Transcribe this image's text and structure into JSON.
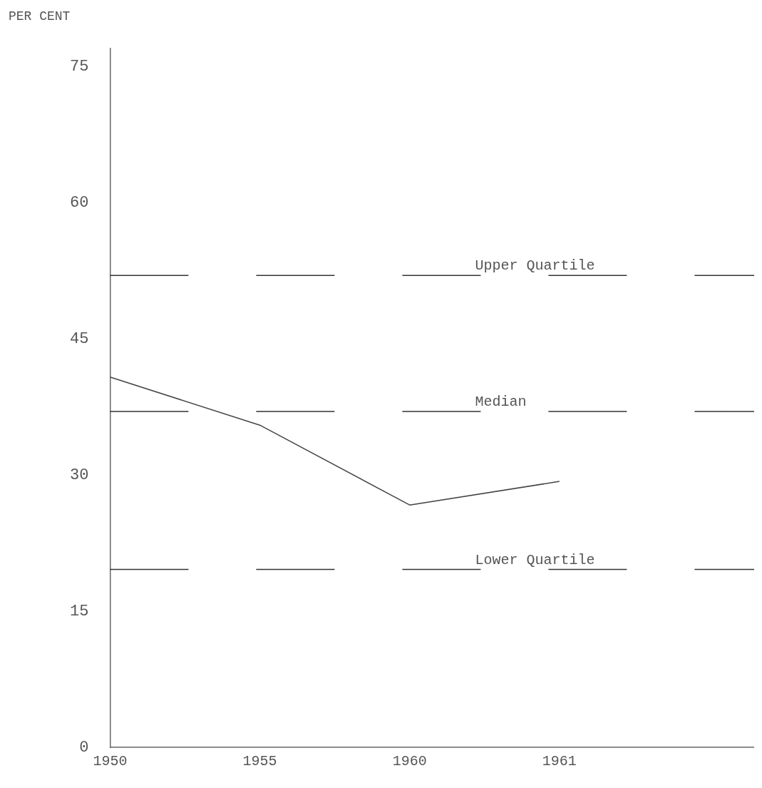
{
  "chart_data": {
    "type": "line",
    "ylabel": "PER CENT",
    "categories": [
      "1950",
      "1955",
      "1960",
      "1961"
    ],
    "series": [
      {
        "color": "#444444",
        "values": [
          40.8,
          35.5,
          26.7,
          29.3
        ]
      }
    ],
    "ylim": [
      0,
      77
    ],
    "yticks": [
      0,
      15,
      30,
      45,
      60,
      75
    ],
    "grid": false,
    "legend": false,
    "marker": "none",
    "line_style": "solid",
    "ref_lines": [
      {
        "axis": "y",
        "value": 52,
        "label": "Upper Quartile",
        "line_style": "dashed",
        "color": "#333333"
      },
      {
        "axis": "y",
        "value": 37,
        "label": "Median",
        "line_style": "dashed",
        "color": "#333333"
      },
      {
        "axis": "y",
        "value": 19.6,
        "label": "Lower Quartile",
        "line_style": "dashed",
        "color": "#333333"
      }
    ]
  }
}
